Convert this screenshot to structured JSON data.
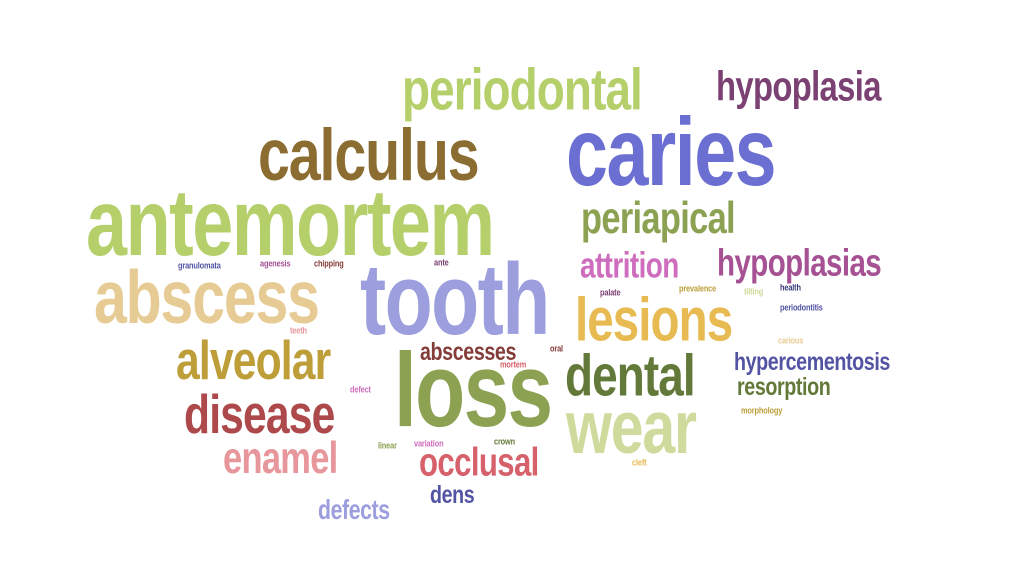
{
  "words": [
    {
      "text": "caries",
      "color": "#6b6fd2"
    },
    {
      "text": "antemortem",
      "color": "#b5cf6b"
    },
    {
      "text": "tooth",
      "color": "#9c9ede"
    },
    {
      "text": "loss",
      "color": "#8ca252"
    },
    {
      "text": "calculus",
      "color": "#8c6d31"
    },
    {
      "text": "abscess",
      "color": "#e7cb94"
    },
    {
      "text": "periodontal",
      "color": "#b5cf6b"
    },
    {
      "text": "wear",
      "color": "#cedb9c"
    },
    {
      "text": "dental",
      "color": "#637939"
    },
    {
      "text": "lesions",
      "color": "#e7ba52"
    },
    {
      "text": "alveolar",
      "color": "#bd9e39"
    },
    {
      "text": "disease",
      "color": "#ad494a"
    },
    {
      "text": "hypoplasia",
      "color": "#7b4173"
    },
    {
      "text": "periapical",
      "color": "#8ca252"
    },
    {
      "text": "occlusal",
      "color": "#d6616b"
    },
    {
      "text": "enamel",
      "color": "#e7969c"
    },
    {
      "text": "hypoplasias",
      "color": "#a55194"
    },
    {
      "text": "attrition",
      "color": "#ce6dbd"
    },
    {
      "text": "abscesses",
      "color": "#843c39"
    },
    {
      "text": "hypercementosis",
      "color": "#5254a3"
    },
    {
      "text": "resorption",
      "color": "#637939"
    },
    {
      "text": "defects",
      "color": "#9c9ede"
    },
    {
      "text": "dens",
      "color": "#5254a3"
    },
    {
      "text": "granulomata",
      "color": "#5254a3"
    },
    {
      "text": "agenesis",
      "color": "#a55194"
    },
    {
      "text": "chipping",
      "color": "#843c39"
    },
    {
      "text": "ante",
      "color": "#7b4173"
    },
    {
      "text": "palate",
      "color": "#7b4173"
    },
    {
      "text": "prevalence",
      "color": "#bd9e39"
    },
    {
      "text": "tilting",
      "color": "#cedb9c"
    },
    {
      "text": "health",
      "color": "#393b79"
    },
    {
      "text": "periodontitis",
      "color": "#5254a3"
    },
    {
      "text": "teeth",
      "color": "#e7969c"
    },
    {
      "text": "carious",
      "color": "#e7cb94"
    },
    {
      "text": "oral",
      "color": "#843c39"
    },
    {
      "text": "mortem",
      "color": "#d6616b"
    },
    {
      "text": "defect",
      "color": "#ce6dbd"
    },
    {
      "text": "linear",
      "color": "#8ca252"
    },
    {
      "text": "variation",
      "color": "#ce6dbd"
    },
    {
      "text": "crown",
      "color": "#637939"
    },
    {
      "text": "morphology",
      "color": "#bd9e39"
    },
    {
      "text": "cleft",
      "color": "#e7ba52"
    }
  ]
}
